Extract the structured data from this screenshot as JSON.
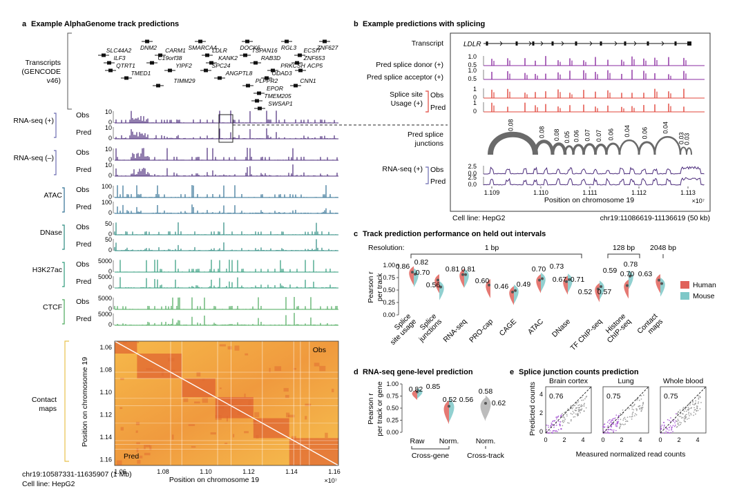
{
  "colors": {
    "rna": "#4a2a7a",
    "atac": "#2f6f92",
    "dnase": "#2a8a7f",
    "h3k27ac": "#2d9a7a",
    "ctcf": "#4aa85a",
    "donor": "#8a2aa0",
    "usage": "#e0443a",
    "human": "#e0625a",
    "mouse": "#7ec8c8",
    "bracket": "#6b6bb0",
    "contact_bracket": "#e8c04a"
  },
  "panel_a": {
    "letter": "a",
    "title": "Example AlphaGenome track predictions",
    "transcripts_label": [
      "Transcripts",
      "(GENCODE",
      "v46)"
    ],
    "genes": [
      {
        "name": "DNM2",
        "x": 213,
        "y": 60,
        "tx": 215,
        "ty": 72
      },
      {
        "name": "SMARCA4",
        "x": 290,
        "y": 60,
        "tx": 293,
        "ty": 72
      },
      {
        "name": "DOCK6",
        "x": 358,
        "y": 60,
        "tx": 362,
        "ty": 72
      },
      {
        "name": "RGL3",
        "x": 415,
        "y": 60,
        "tx": 418,
        "ty": 72
      },
      {
        "name": "ZNF627",
        "x": 470,
        "y": 60,
        "tx": 474,
        "ty": 72
      },
      {
        "name": "SLC44A2",
        "x": 150,
        "y": 80,
        "tx": 172,
        "ty": 76
      },
      {
        "name": "CARM1",
        "x": 232,
        "y": 80,
        "tx": 254,
        "ty": 76
      },
      {
        "name": "LDLR",
        "x": 300,
        "y": 80,
        "tx": 318,
        "ty": 76
      },
      {
        "name": "TSPAN16",
        "x": 355,
        "y": 80,
        "tx": 383,
        "ty": 76
      },
      {
        "name": "ECSIT",
        "x": 434,
        "y": 80,
        "tx": 452,
        "ty": 76
      },
      {
        "name": "ILF3",
        "x": 158,
        "y": 91,
        "tx": 173,
        "ty": 87
      },
      {
        "name": "C19orf38",
        "x": 220,
        "y": 91,
        "tx": 246,
        "ty": 87
      },
      {
        "name": "KANK2",
        "x": 306,
        "y": 91,
        "tx": 330,
        "ty": 87
      },
      {
        "name": "RAB3D",
        "x": 370,
        "y": 91,
        "tx": 392,
        "ty": 87
      },
      {
        "name": "ZNF653",
        "x": 430,
        "y": 91,
        "tx": 455,
        "ty": 87
      },
      {
        "name": "QTRT1",
        "x": 160,
        "y": 102,
        "tx": 182,
        "ty": 98
      },
      {
        "name": "YIPF2",
        "x": 246,
        "y": 102,
        "tx": 266,
        "ty": 98
      },
      {
        "name": "SPC24",
        "x": 298,
        "y": 102,
        "tx": 320,
        "ty": 98
      },
      {
        "name": "PRKCSH",
        "x": 395,
        "y": 102,
        "tx": 424,
        "ty": 98
      },
      {
        "name": "ACP5",
        "x": 435,
        "y": 102,
        "tx": 456,
        "ty": 98
      },
      {
        "name": "TMED1",
        "x": 183,
        "y": 113,
        "tx": 204,
        "ty": 109
      },
      {
        "name": "ANGPTL8",
        "x": 318,
        "y": 113,
        "tx": 346,
        "ty": 109
      },
      {
        "name": "ODAD3",
        "x": 386,
        "y": 113,
        "tx": 408,
        "ty": 109
      },
      {
        "name": "CNN1",
        "x": 428,
        "y": 124,
        "tx": 446,
        "ty": 120
      },
      {
        "name": "TIMM29",
        "x": 229,
        "y": 124,
        "tx": 267,
        "ty": 120
      },
      {
        "name": "PLPPR2",
        "x": 359,
        "y": 124,
        "tx": 386,
        "ty": 120
      },
      {
        "name": "EPOR",
        "x": 375,
        "y": 135,
        "tx": 398,
        "ty": 131
      },
      {
        "name": "TMEM205",
        "x": 372,
        "y": 146,
        "tx": 402,
        "ty": 142
      },
      {
        "name": "SWSAP1",
        "x": 376,
        "y": 157,
        "tx": 406,
        "ty": 153
      }
    ],
    "tracks": [
      {
        "assay": "RNA-seq (+)",
        "color_key": "rna",
        "obs": "Obs",
        "pred": "Pred",
        "ticks": [
          "10",
          "0",
          "10",
          "0"
        ],
        "seed": 11
      },
      {
        "assay": "RNA-seq (–)",
        "color_key": "rna",
        "obs": "Obs",
        "pred": "Pred",
        "ticks": [
          "10",
          "0",
          "10",
          "0"
        ],
        "seed": 23
      },
      {
        "assay": "ATAC",
        "color_key": "atac",
        "obs": "Obs",
        "pred": "Pred",
        "ticks": [
          "100",
          "0",
          "100",
          "0"
        ],
        "seed": 37
      },
      {
        "assay": "DNase",
        "color_key": "dnase",
        "obs": "Obs",
        "pred": "Pred",
        "ticks": [
          "50",
          "0",
          "50",
          "0"
        ],
        "seed": 41
      },
      {
        "assay": "H3K27ac",
        "color_key": "h3k27ac",
        "obs": "Obs",
        "pred": "Pred",
        "ticks": [
          "5000",
          "0",
          "5000",
          "0"
        ],
        "seed": 53
      },
      {
        "assay": "CTCF",
        "color_key": "ctcf",
        "obs": "Obs",
        "pred": "Pred",
        "ticks": [
          "5000",
          "0",
          "5000",
          "0"
        ],
        "seed": 67
      }
    ],
    "contact": {
      "label": [
        "Contact",
        "maps"
      ],
      "obs": "Obs",
      "pred": "Pred",
      "ylabel": "Position on chromosome 19",
      "xlabel": "Position on chromosome 19",
      "yticks": [
        "1.06",
        "1.08",
        "1.10",
        "1.12",
        "1.14",
        "1.16"
      ],
      "xticks": [
        "1.06",
        "1.08",
        "1.10",
        "1.12",
        "1.14",
        "1.16"
      ],
      "multiplier": "×10⁷"
    },
    "footer_locus": "chr19:10587331-11635907 (1 Mb)",
    "footer_cell": "Cell line: HepG2"
  },
  "panel_b": {
    "letter": "b",
    "title": "Example predictions with splicing",
    "transcript_label": "Transcript",
    "gene": "LDLR",
    "donor_label": "Pred splice donor (+)",
    "acceptor_label": "Pred splice acceptor (+)",
    "usage_label": [
      "Splice site",
      "Usage (+)"
    ],
    "obs": "Obs",
    "pred": "Pred",
    "junctions_label": [
      "Pred splice",
      "junctions"
    ],
    "rna_label": "RNA-seq (+)",
    "donor_ticks": [
      "1.0",
      "0.5",
      "1.0",
      "0.5"
    ],
    "usage_ticks": [
      "1",
      "0",
      "1",
      "0"
    ],
    "rna_ticks": [
      "2.5",
      "0.0",
      "2.5",
      "0.0"
    ],
    "junction_values": [
      "0.08",
      "0.08",
      "0.08",
      "0.05",
      "0.06",
      "0.07",
      "0.07",
      "0.06",
      "0.04",
      "0.06",
      "0.04",
      "0.03",
      "0.03"
    ],
    "xticks": [
      "1.109",
      "1.110",
      "1.111",
      "1.112",
      "1.113"
    ],
    "xlabel": "Position on chromosome 19",
    "multiplier": "×10⁷",
    "cell": "Cell line: HepG2",
    "locus": "chr19:11086619-11136619 (50 kb)"
  },
  "panel_c": {
    "letter": "c",
    "title": "Track prediction performance on held out intervals",
    "resolution_label": "Resolution:",
    "res_1bp": "1 bp",
    "res_128bp": "128 bp",
    "res_2048bp": "2048 bp",
    "ylabel": [
      "Pearson r",
      "per track"
    ],
    "yticks": [
      "1.00",
      "0.75",
      "0.50",
      "0.25",
      "0.00"
    ],
    "legend": [
      {
        "name": "Human",
        "color_key": "human"
      },
      {
        "name": "Mouse",
        "color_key": "mouse"
      }
    ]
  },
  "chart_data": [
    {
      "type": "violin",
      "panel": "c",
      "categories": [
        "Splice site usage",
        "Splice junctions",
        "RNA-seq",
        "PRO-cap",
        "CAGE",
        "ATAC",
        "DNase",
        "TF ChIP-seq",
        "Histone ChIP-seq",
        "Contact maps"
      ],
      "series": [
        {
          "name": "Human",
          "values": [
            0.86,
            0.7,
            0.81,
            0.6,
            0.46,
            0.7,
            0.67,
            0.52,
            0.59,
            0.7
          ]
        },
        {
          "name": "Mouse",
          "values": [
            0.82,
            0.56,
            0.81,
            null,
            0.49,
            0.73,
            0.71,
            0.57,
            0.78,
            0.63
          ]
        }
      ],
      "ylabel": "Pearson r per track",
      "ylim": [
        0,
        1
      ]
    },
    {
      "type": "violin",
      "panel": "d",
      "categories": [
        "Raw",
        "Norm.",
        "Norm."
      ],
      "groups": [
        "Cross-gene",
        "Cross-gene",
        "Cross-track"
      ],
      "series": [
        {
          "name": "Human",
          "values": [
            0.82,
            0.52,
            0.58
          ]
        },
        {
          "name": "Mouse",
          "values": [
            0.85,
            0.56,
            0.62
          ]
        }
      ],
      "ylabel": "Pearson r per track or gene",
      "ylim": [
        0,
        1
      ]
    },
    {
      "type": "scatter",
      "panel": "e",
      "panels": [
        {
          "title": "Brain cortex",
          "r": "0.76"
        },
        {
          "title": "Lung",
          "r": "0.75"
        },
        {
          "title": "Whole blood",
          "r": "0.75"
        }
      ],
      "xlabel": "Measured normalized read counts",
      "ylabel": "Predicted counts",
      "xlim": [
        0,
        5
      ],
      "ylim": [
        0,
        5
      ]
    }
  ],
  "panel_d": {
    "letter": "d",
    "title": "RNA-seq gene-level prediction",
    "ylabel": [
      "Pearson r",
      "per track or gene"
    ],
    "yticks": [
      "1.00",
      "0.75",
      "0.50",
      "0.25",
      "0.00"
    ],
    "labels": [
      "0.82",
      "0.85",
      "0.52",
      "0.56",
      "0.58",
      "0.62"
    ],
    "xticks": [
      "Raw",
      "Norm.",
      "Norm."
    ],
    "groups": [
      "Cross-gene",
      "Cross-track"
    ]
  },
  "panel_e": {
    "letter": "e",
    "title": "Splice junction counts prediction",
    "titles": [
      "Brain cortex",
      "Lung",
      "Whole blood"
    ],
    "rvals": [
      "0.76",
      "0.75",
      "0.75"
    ],
    "xticks": [
      "0",
      "2",
      "4"
    ],
    "yticks": [
      "4",
      "2",
      "0"
    ],
    "xlabel": "Measured normalized read counts",
    "ylabel": "Predicted counts"
  },
  "panel_c_labels": {
    "values": [
      "0.86",
      "0.82",
      "0.70",
      "0.56",
      "0.81",
      "0.81",
      "0.60",
      "0.46",
      "0.49",
      "0.70",
      "0.73",
      "0.67",
      "0.71",
      "0.52",
      "0.57",
      "0.59",
      "0.78",
      "0.70",
      "0.63"
    ],
    "xlabels": [
      "Splice\nsite usage",
      "Splice\njunctions",
      "RNA-seq",
      "PRO-cap",
      "CAGE",
      "ATAC",
      "DNase",
      "TF ChIP-seq",
      "Histone\nChIP-seq",
      "Contact\nmaps"
    ]
  }
}
